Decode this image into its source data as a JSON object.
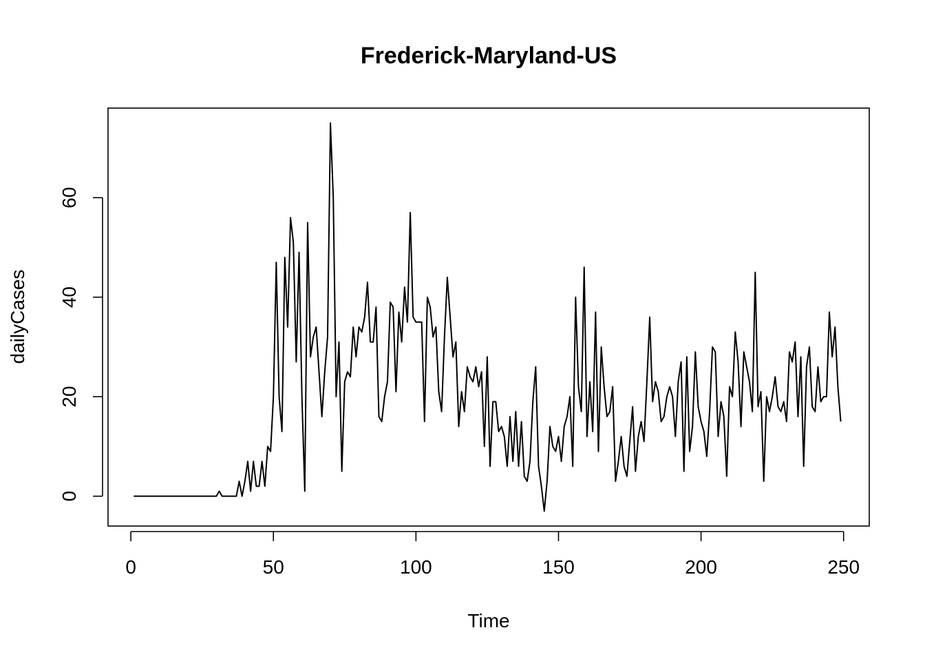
{
  "chart_data": {
    "type": "line",
    "title": "Frederick-Maryland-US",
    "xlabel": "Time",
    "ylabel": "dailyCases",
    "xlim": [
      -8,
      259
    ],
    "ylim": [
      -6,
      78
    ],
    "xticks": [
      0,
      50,
      100,
      150,
      200,
      250
    ],
    "yticks": [
      0,
      20,
      40,
      60
    ],
    "grid": false,
    "colors": {
      "line": "#000000",
      "frame": "#000000",
      "background": "#ffffff"
    },
    "series": [
      {
        "values": [
          0,
          0,
          0,
          0,
          0,
          0,
          0,
          0,
          0,
          0,
          0,
          0,
          0,
          0,
          0,
          0,
          0,
          0,
          0,
          0,
          0,
          0,
          0,
          0,
          0,
          0,
          0,
          0,
          0,
          0,
          1,
          0,
          0,
          0,
          0,
          0,
          0,
          3,
          0,
          3,
          7,
          1,
          7,
          2,
          2,
          7,
          2,
          10,
          9,
          20,
          47,
          20,
          13,
          48,
          34,
          56,
          51,
          27,
          49,
          20,
          1,
          55,
          28,
          32,
          34,
          25,
          16,
          25,
          32,
          75,
          60,
          20,
          31,
          5,
          23,
          25,
          24,
          34,
          28,
          34,
          33,
          36,
          43,
          31,
          31,
          38,
          16,
          15,
          20,
          23,
          39,
          38,
          21,
          37,
          31,
          42,
          35,
          57,
          36,
          35,
          35,
          35,
          15,
          40,
          38,
          32,
          34,
          21,
          17,
          32,
          44,
          36,
          28,
          31,
          14,
          21,
          17,
          26,
          24,
          23,
          26,
          22,
          25,
          10,
          28,
          6,
          19,
          19,
          13,
          14,
          12,
          6,
          16,
          7,
          17,
          6,
          15,
          4,
          3,
          7,
          19,
          26,
          6,
          2,
          -3,
          3,
          14,
          10,
          9,
          12,
          7,
          14,
          16,
          20,
          6,
          40,
          22,
          17,
          46,
          12,
          23,
          13,
          37,
          9,
          30,
          22,
          16,
          17,
          22,
          3,
          7,
          12,
          6,
          4,
          11,
          18,
          5,
          12,
          15,
          11,
          23,
          36,
          19,
          23,
          21,
          15,
          16,
          20,
          22,
          20,
          12,
          23,
          27,
          5,
          28,
          9,
          14,
          29,
          18,
          15,
          13,
          8,
          17,
          30,
          29,
          12,
          19,
          16,
          4,
          22,
          20,
          33,
          27,
          14,
          29,
          26,
          23,
          17,
          45,
          18,
          21,
          3,
          20,
          17,
          20,
          24,
          18,
          17,
          19,
          15,
          29,
          27,
          31,
          16,
          28,
          6,
          26,
          30,
          18,
          17,
          26,
          19,
          20,
          20,
          37,
          28,
          34,
          22,
          15
        ]
      }
    ]
  }
}
